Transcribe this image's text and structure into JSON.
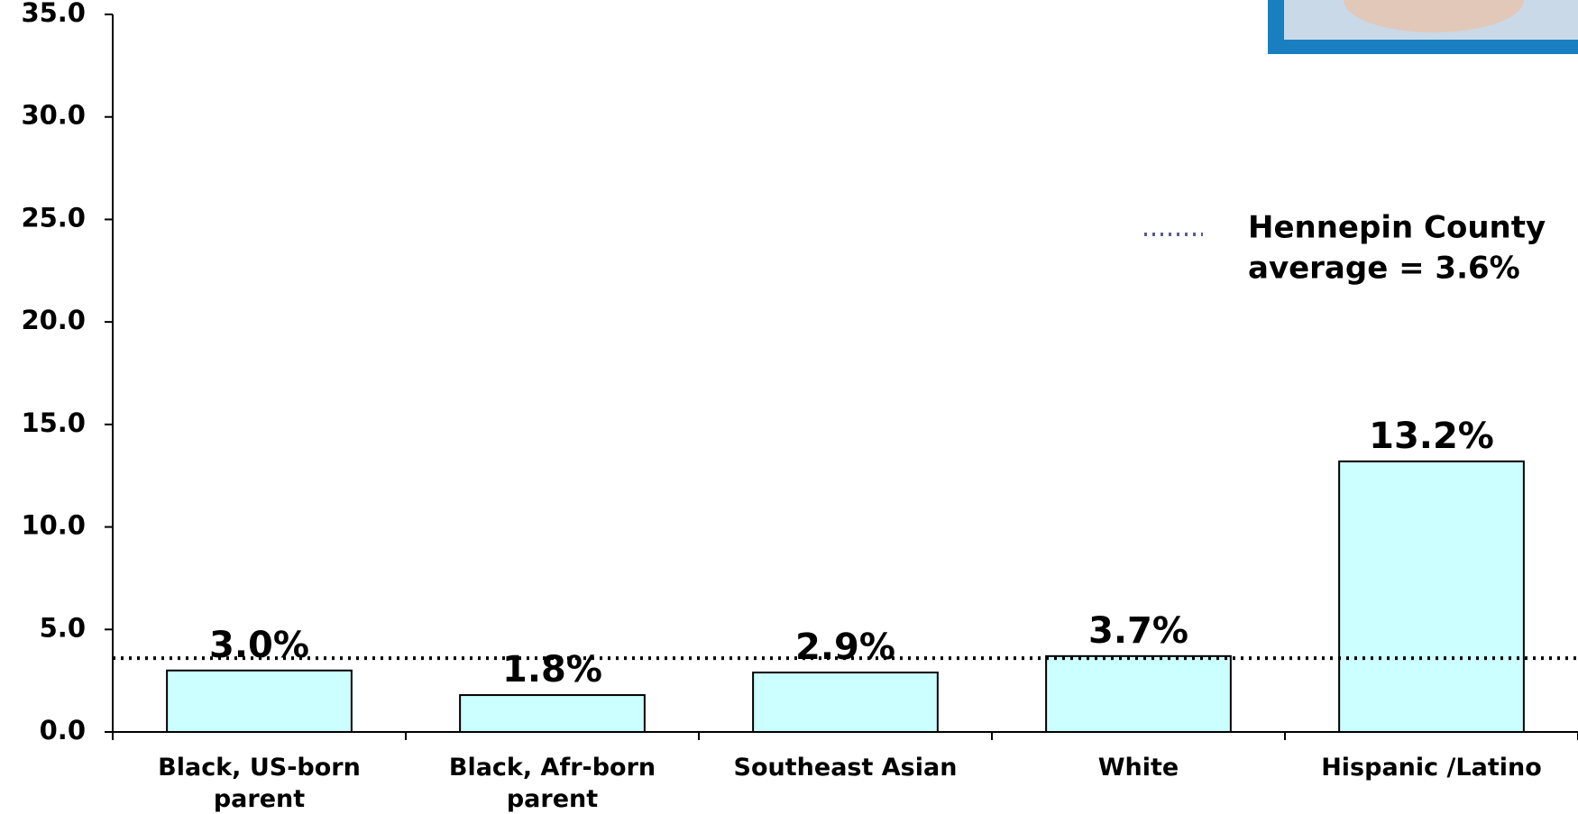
{
  "chart_data": {
    "type": "bar",
    "categories": [
      "Black, US-born parent",
      "Black, Afr-born parent",
      "Southeast Asian",
      "White",
      "Hispanic /Latino"
    ],
    "values": [
      3.0,
      1.8,
      2.9,
      3.7,
      13.2
    ],
    "value_labels": [
      "3.0%",
      "1.8%",
      "2.9%",
      "3.7%",
      "13.2%"
    ],
    "color": "#ccffff",
    "ylim": [
      0,
      35
    ],
    "yticks": [
      {
        "value": 0,
        "label": "0.0"
      },
      {
        "value": 5,
        "label": "5.0"
      },
      {
        "value": 10,
        "label": "10.0"
      },
      {
        "value": 15,
        "label": "15.0"
      },
      {
        "value": 20,
        "label": "20.0"
      },
      {
        "value": 25,
        "label": "25.0"
      },
      {
        "value": 30,
        "label": "30.0"
      },
      {
        "value": 35,
        "label": "35.0"
      }
    ],
    "reference_line": {
      "name": [
        "Hennepin County",
        "average = 3.6%"
      ],
      "value": 3.6,
      "color": "#000000",
      "legend_color": "#5a5a9a"
    }
  }
}
